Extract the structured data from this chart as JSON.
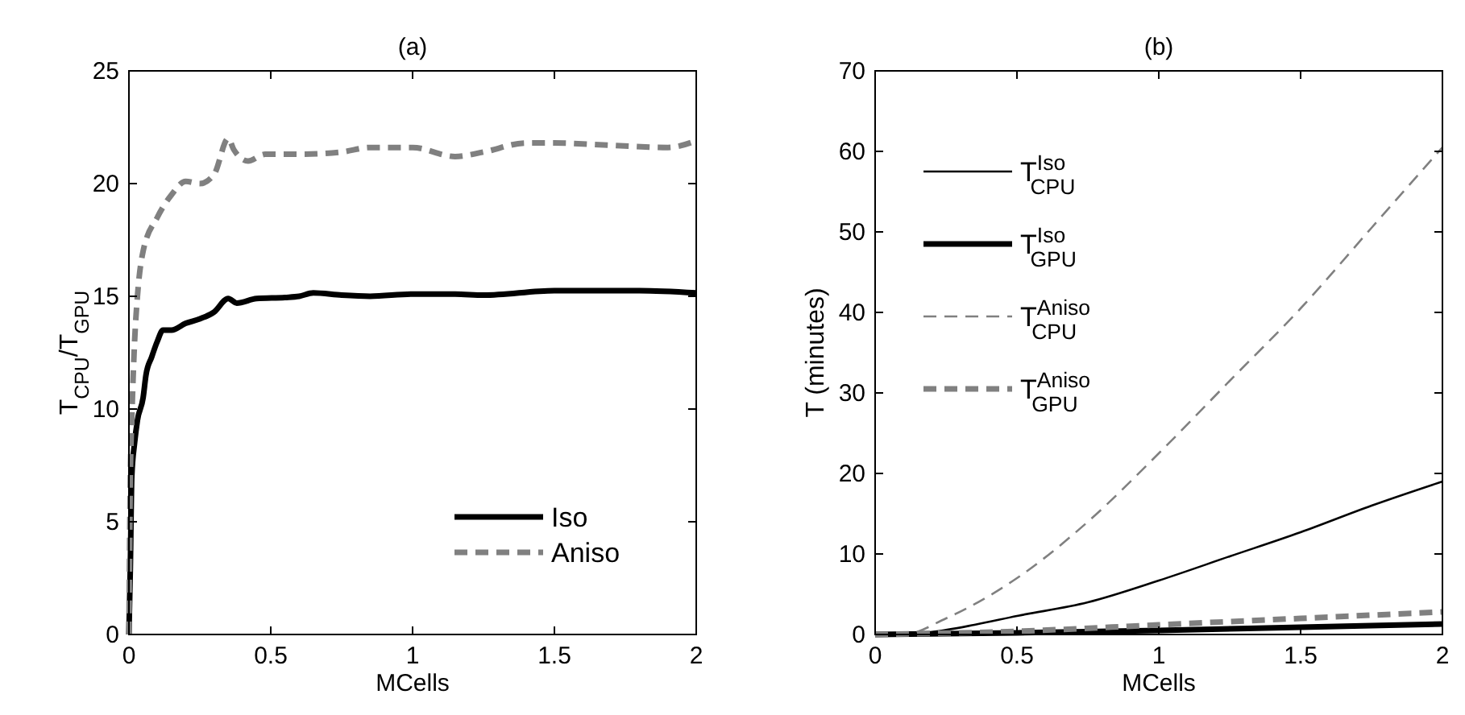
{
  "chart_data": [
    {
      "type": "line",
      "title": "(a)",
      "xlabel": "MCells",
      "ylabel": "T$_{CPU}$/T$_{GPU}$",
      "xlim": [
        0,
        2
      ],
      "xticks": [
        0,
        0.5,
        1,
        1.5,
        2
      ],
      "ylim": [
        0,
        25
      ],
      "yticks": [
        0,
        5,
        10,
        15,
        20,
        25
      ],
      "legend": "bottom right",
      "grid": false,
      "series": [
        {
          "name": "Iso",
          "color": "#000000",
          "line_style": "solid",
          "x": [
            0,
            0.005,
            0.01,
            0.02,
            0.03,
            0.05,
            0.06,
            0.08,
            0.1,
            0.12,
            0.15,
            0.2,
            0.25,
            0.3,
            0.35,
            0.38,
            0.45,
            0.55,
            0.6,
            0.65,
            0.75,
            0.85,
            1,
            1.1,
            1.15,
            1.25,
            1.5,
            1.8,
            2
          ],
          "values": [
            0,
            3,
            7,
            8.5,
            9.5,
            10.5,
            11.5,
            12.3,
            13,
            13.5,
            13.5,
            13.8,
            14,
            14.3,
            14.9,
            14.7,
            14.9,
            14.95,
            15,
            15.15,
            15.05,
            15,
            15.1,
            15.1,
            15.1,
            15.05,
            15.25,
            15.25,
            15.15
          ]
        },
        {
          "name": "Aniso",
          "color": "#808080",
          "line_style": "dashed",
          "x": [
            0,
            0.005,
            0.01,
            0.02,
            0.03,
            0.05,
            0.1,
            0.15,
            0.2,
            0.25,
            0.3,
            0.35,
            0.37,
            0.42,
            0.48,
            0.6,
            0.75,
            0.85,
            1,
            1.15,
            1.25,
            1.4,
            1.5,
            1.7,
            1.9,
            2
          ],
          "values": [
            0,
            7,
            9.5,
            13,
            15,
            17,
            18.5,
            19.5,
            20.1,
            20,
            20.4,
            22,
            21.5,
            21,
            21.3,
            21.3,
            21.4,
            21.6,
            21.6,
            21.2,
            21.4,
            21.8,
            21.8,
            21.7,
            21.6,
            21.9
          ]
        }
      ]
    },
    {
      "type": "line",
      "title": "(b)",
      "xlabel": "MCells",
      "ylabel": "T (minutes)",
      "xlim": [
        0,
        2
      ],
      "xticks": [
        0,
        0.5,
        1,
        1.5,
        2
      ],
      "ylim": [
        0,
        70
      ],
      "yticks": [
        0,
        10,
        20,
        30,
        40,
        50,
        60,
        70
      ],
      "legend": "top left",
      "grid": false,
      "series": [
        {
          "name": "T$^{Iso}$$_{CPU}$",
          "color": "#000000",
          "line_style": "solid",
          "x": [
            0,
            0.1,
            0.2,
            0.35,
            0.5,
            0.75,
            1,
            1.25,
            1.5,
            1.75,
            2
          ],
          "values": [
            0,
            0,
            0.3,
            1.2,
            2.3,
            4,
            6.7,
            9.7,
            12.7,
            16,
            19
          ]
        },
        {
          "name": "T$^{Iso}$$_{GPU}$",
          "color": "#000000",
          "line_style": "solid",
          "x": [
            0,
            0.5,
            1,
            1.5,
            2
          ],
          "values": [
            0,
            0.2,
            0.5,
            0.9,
            1.3
          ]
        },
        {
          "name": "T$^{Aniso}$$_{CPU}$",
          "color": "#808080",
          "line_style": "dashed",
          "x": [
            0,
            0.1,
            0.25,
            0.5,
            0.75,
            1,
            1.25,
            1.5,
            1.75,
            2
          ],
          "values": [
            0,
            0,
            2,
            7,
            14,
            22.5,
            31.5,
            40.5,
            50.5,
            60.5
          ]
        },
        {
          "name": "T$^{Aniso}$$_{GPU}$",
          "color": "#808080",
          "line_style": "dashed",
          "x": [
            0,
            0.5,
            1,
            1.5,
            2
          ],
          "values": [
            0,
            0.4,
            1.2,
            2,
            2.8
          ]
        }
      ]
    }
  ]
}
